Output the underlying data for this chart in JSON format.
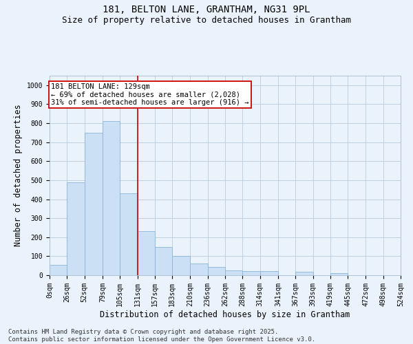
{
  "title_line1": "181, BELTON LANE, GRANTHAM, NG31 9PL",
  "title_line2": "Size of property relative to detached houses in Grantham",
  "xlabel": "Distribution of detached houses by size in Grantham",
  "ylabel": "Number of detached properties",
  "bar_edges": [
    0,
    26,
    52,
    79,
    105,
    131,
    157,
    183,
    210,
    236,
    262,
    288,
    314,
    341,
    367,
    393,
    419,
    445,
    472,
    498,
    524
  ],
  "bar_heights": [
    55,
    490,
    750,
    810,
    430,
    230,
    150,
    100,
    60,
    45,
    25,
    20,
    20,
    0,
    18,
    0,
    10,
    0,
    0,
    0
  ],
  "bar_color": "#cce0f5",
  "bar_edge_color": "#8ab4d8",
  "grid_color": "#c0d0e0",
  "background_color": "#eaf2fb",
  "vline_x": 131,
  "vline_color": "#cc0000",
  "annotation_title": "181 BELTON LANE: 129sqm",
  "annotation_line1": "← 69% of detached houses are smaller (2,028)",
  "annotation_line2": "31% of semi-detached houses are larger (916) →",
  "annotation_box_color": "#cc0000",
  "annotation_bg": "white",
  "ylim_max": 1050,
  "yticks": [
    0,
    100,
    200,
    300,
    400,
    500,
    600,
    700,
    800,
    900,
    1000
  ],
  "tick_labels": [
    "0sqm",
    "26sqm",
    "52sqm",
    "79sqm",
    "105sqm",
    "131sqm",
    "157sqm",
    "183sqm",
    "210sqm",
    "236sqm",
    "262sqm",
    "288sqm",
    "314sqm",
    "341sqm",
    "367sqm",
    "393sqm",
    "419sqm",
    "445sqm",
    "472sqm",
    "498sqm",
    "524sqm"
  ],
  "footer_line1": "Contains HM Land Registry data © Crown copyright and database right 2025.",
  "footer_line2": "Contains public sector information licensed under the Open Government Licence v3.0.",
  "title_fontsize": 10,
  "subtitle_fontsize": 9,
  "axis_label_fontsize": 8.5,
  "tick_fontsize": 7,
  "annotation_fontsize": 7.5,
  "footer_fontsize": 6.5,
  "ylabel_fontsize": 8.5
}
